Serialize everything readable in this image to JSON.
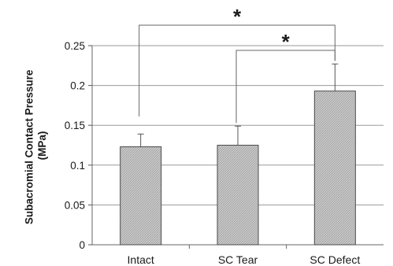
{
  "chart_data": {
    "type": "bar",
    "title": "",
    "xlabel": "",
    "ylabel": "Subacromial Contact Pressure (MPa)",
    "ylabel_lines": [
      "Subacromial Contact Pressure",
      "(MPa)"
    ],
    "categories": [
      "Intact",
      "SC Tear",
      "SC Defect"
    ],
    "values": [
      0.123,
      0.125,
      0.193
    ],
    "error_upper": [
      0.016,
      0.024,
      0.034
    ],
    "ylim": [
      0,
      0.25
    ],
    "yticks": [
      0,
      0.05,
      0.1,
      0.15,
      0.2,
      0.25
    ],
    "ytick_labels": [
      "0",
      "0.05",
      "0.1",
      "0.15",
      "0.2",
      "0.25"
    ],
    "grid": true,
    "bar_fill": "#c4c4c4",
    "bar_stroke": "#4a4a4a",
    "grid_color": "#9a9a9a",
    "significance": [
      {
        "from": "Intact",
        "to": "SC Defect",
        "label": "*"
      },
      {
        "from": "SC Tear",
        "to": "SC Defect",
        "label": "*"
      }
    ]
  }
}
